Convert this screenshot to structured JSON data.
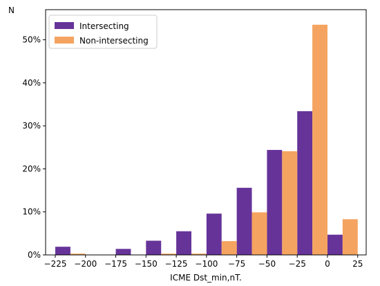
{
  "chart_data": {
    "type": "bar",
    "title": "",
    "xlabel": "ICME Dst_min,nT.",
    "ylabel": "N",
    "xlim": [
      -233,
      32
    ],
    "ylim": [
      0,
      57
    ],
    "y_format": "percent",
    "xticks": [
      -225,
      -200,
      -175,
      -150,
      -125,
      -100,
      -75,
      -50,
      -25,
      0,
      25
    ],
    "xtick_labels": [
      "−225",
      "−200",
      "−175",
      "−150",
      "−125",
      "−100",
      "−75",
      "−50",
      "−25",
      "0",
      "25"
    ],
    "yticks": [
      0,
      10,
      20,
      30,
      40,
      50
    ],
    "ytick_labels": [
      "0%",
      "10%",
      "20%",
      "30%",
      "40%",
      "50%"
    ],
    "bin_edges": [
      -225,
      -200,
      -175,
      -150,
      -125,
      -100,
      -75,
      -50,
      -25,
      0,
      25
    ],
    "grid": false,
    "legend_position": "top-left",
    "series": [
      {
        "name": "Intersecting",
        "color": "#663399",
        "values": [
          1.9,
          0,
          1.4,
          3.3,
          5.5,
          9.6,
          15.6,
          24.4,
          33.4,
          4.7
        ]
      },
      {
        "name": "Non-intersecting",
        "color": "#f4a460",
        "values": [
          0.3,
          0,
          0,
          0.3,
          0.3,
          3.2,
          9.9,
          24.1,
          53.5,
          8.3
        ]
      }
    ]
  }
}
